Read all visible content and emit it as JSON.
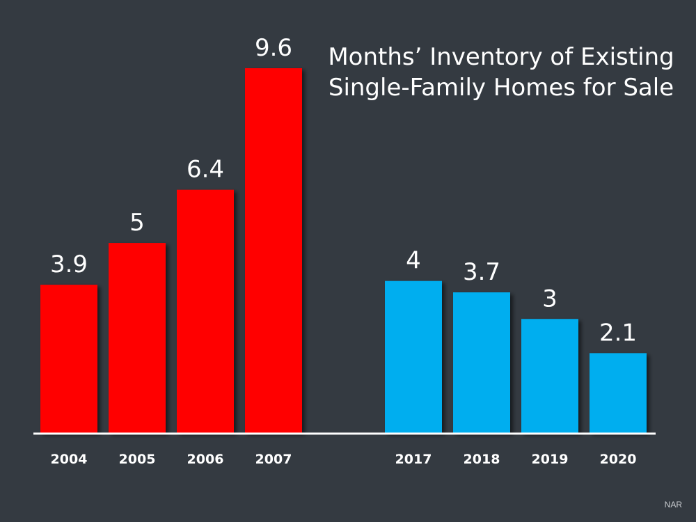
{
  "chart_data": {
    "type": "bar",
    "title_lines": [
      "Months’ Inventory of Existing",
      "Single-Family Homes for Sale"
    ],
    "categories": [
      "2004",
      "2005",
      "2006",
      "2007",
      "2017",
      "2018",
      "2019",
      "2020"
    ],
    "values": [
      3.9,
      5,
      6.4,
      9.6,
      4,
      3.7,
      3,
      2.1
    ],
    "value_labels": [
      "3.9",
      "5",
      "6.4",
      "9.6",
      "4",
      "3.7",
      "3",
      "2.1"
    ],
    "bar_colors": [
      "#ff0000",
      "#ff0000",
      "#ff0000",
      "#ff0000",
      "#00aeef",
      "#00aeef",
      "#00aeef",
      "#00aeef"
    ],
    "ylim": [
      0,
      9.6
    ],
    "grid": false,
    "legend": "none",
    "source": "NAR"
  },
  "colors": {
    "background": "#343a41",
    "text": "#ffffff",
    "axis": "#ffffff"
  }
}
